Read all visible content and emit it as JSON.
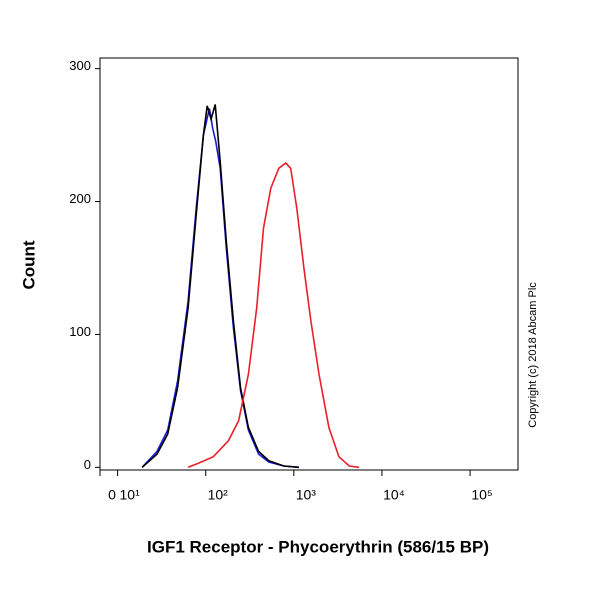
{
  "chart_data": {
    "type": "line",
    "y_label": "Count",
    "x_label": "IGF1 Receptor - Phycoerythrin (586/15 BP)",
    "annotation": "Copyright (c) 2018 Abcam Plc",
    "xscale": "symlog",
    "linthresh": 10,
    "linscale": 0.2,
    "xlim": [
      0,
      350000
    ],
    "xticks": [
      {
        "value": 0,
        "label": "0"
      },
      {
        "value": 10,
        "label": "10¹"
      },
      {
        "value": 100,
        "label": "10²"
      },
      {
        "value": 1000,
        "label": "10³"
      },
      {
        "value": 10000,
        "label": "10⁴"
      },
      {
        "value": 100000,
        "label": "10⁵"
      }
    ],
    "ylim": [
      -2,
      308
    ],
    "yticks": [
      0,
      100,
      200,
      300
    ],
    "series": [
      {
        "color": "#1a1adb",
        "x": [
          19,
          28,
          37,
          48,
          63,
          78,
          94,
          110,
          120,
          130,
          146,
          171,
          206,
          248,
          305,
          398,
          520,
          770,
          1140
        ],
        "values": [
          0,
          12,
          28,
          65,
          125,
          195,
          250,
          270,
          255,
          245,
          225,
          165,
          105,
          58,
          28,
          10,
          4,
          1,
          0
        ]
      },
      {
        "color": "#000000",
        "x": [
          19,
          28,
          37,
          48,
          63,
          78,
          94,
          104,
          115,
          128,
          146,
          171,
          206,
          248,
          305,
          398,
          520,
          770,
          1140
        ],
        "values": [
          0,
          10,
          25,
          60,
          120,
          190,
          250,
          272,
          262,
          273,
          230,
          170,
          110,
          60,
          30,
          12,
          5,
          1,
          0
        ]
      },
      {
        "color": "#e8202a",
        "x": [
          63,
          82,
          122,
          181,
          236,
          305,
          379,
          452,
          547,
          675,
          810,
          920,
          1080,
          1300,
          1560,
          1930,
          2500,
          3250,
          4250,
          5500
        ],
        "values": [
          0,
          3,
          8,
          20,
          35,
          70,
          120,
          180,
          210,
          225,
          229,
          225,
          195,
          150,
          110,
          70,
          30,
          8,
          1,
          0
        ]
      }
    ]
  }
}
